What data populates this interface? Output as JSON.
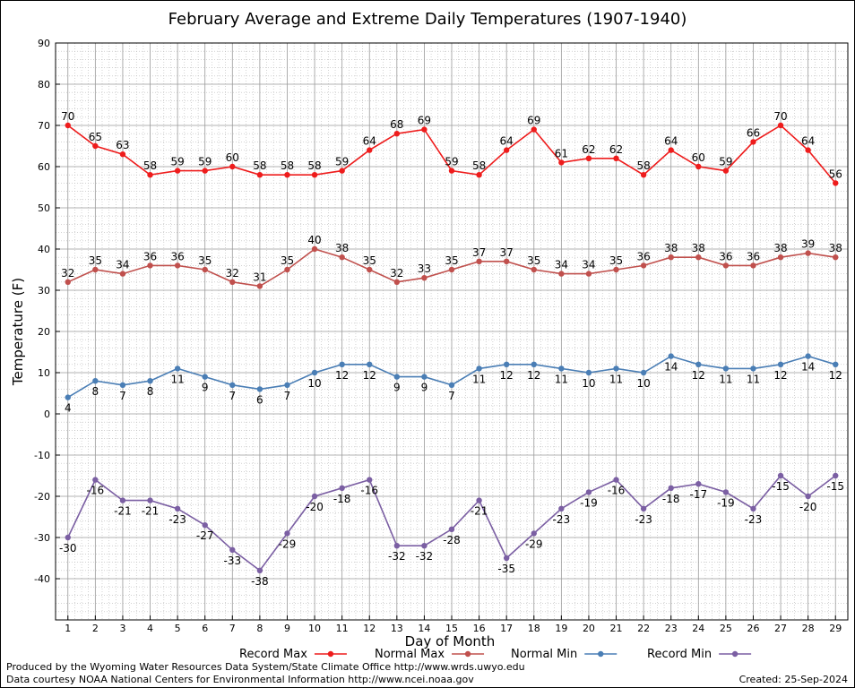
{
  "chart_data": {
    "type": "line",
    "title": "February Average and Extreme Daily Temperatures (1907-1940)",
    "xlabel": "Day of Month",
    "ylabel": "Temperature (F)",
    "ylim": [
      -50,
      90
    ],
    "yticks": [
      90,
      80,
      70,
      60,
      50,
      40,
      30,
      20,
      10,
      0,
      -10,
      -20,
      -30,
      -40
    ],
    "x": [
      1,
      2,
      3,
      4,
      5,
      6,
      7,
      8,
      9,
      10,
      11,
      12,
      13,
      14,
      15,
      16,
      17,
      18,
      19,
      20,
      21,
      22,
      23,
      24,
      25,
      26,
      27,
      28,
      29
    ],
    "grid": true,
    "legend_position": "bottom",
    "series": [
      {
        "name": "Record Max",
        "color": "#ee1c1c",
        "values": [
          70,
          65,
          63,
          58,
          59,
          59,
          60,
          58,
          58,
          58,
          59,
          64,
          68,
          69,
          59,
          58,
          64,
          69,
          61,
          62,
          62,
          58,
          64,
          60,
          59,
          66,
          70,
          64,
          56
        ],
        "label_position": "above"
      },
      {
        "name": "Normal Max",
        "color": "#c0504d",
        "values": [
          32,
          35,
          34,
          36,
          36,
          35,
          32,
          31,
          35,
          40,
          38,
          35,
          32,
          33,
          35,
          37,
          37,
          35,
          34,
          34,
          35,
          36,
          38,
          38,
          36,
          36,
          38,
          39,
          38
        ],
        "label_position": "above"
      },
      {
        "name": "Normal Min",
        "color": "#4a7eb5",
        "values": [
          4,
          8,
          7,
          8,
          11,
          9,
          7,
          6,
          7,
          10,
          12,
          12,
          9,
          9,
          7,
          11,
          12,
          12,
          11,
          10,
          11,
          10,
          14,
          12,
          11,
          11,
          12,
          14,
          12
        ],
        "label_position": "below"
      },
      {
        "name": "Record Min",
        "color": "#7b5fa3",
        "values": [
          -30,
          -16,
          -21,
          -21,
          -23,
          -27,
          -33,
          -38,
          -29,
          -20,
          -18,
          -16,
          -32,
          -32,
          -28,
          -21,
          -35,
          -29,
          -23,
          -19,
          -16,
          -23,
          -18,
          -17,
          -19,
          -23,
          -15,
          -20,
          -15
        ],
        "label_position": "below"
      }
    ]
  },
  "footer": {
    "line1": "Produced by the Wyoming Water Resources Data System/State Climate Office http://www.wrds.uwyo.edu",
    "line2": "Data courtesy NOAA National Centers for Environmental Information http://www.ncei.noaa.gov",
    "created": "Created:  25-Sep-2024"
  }
}
